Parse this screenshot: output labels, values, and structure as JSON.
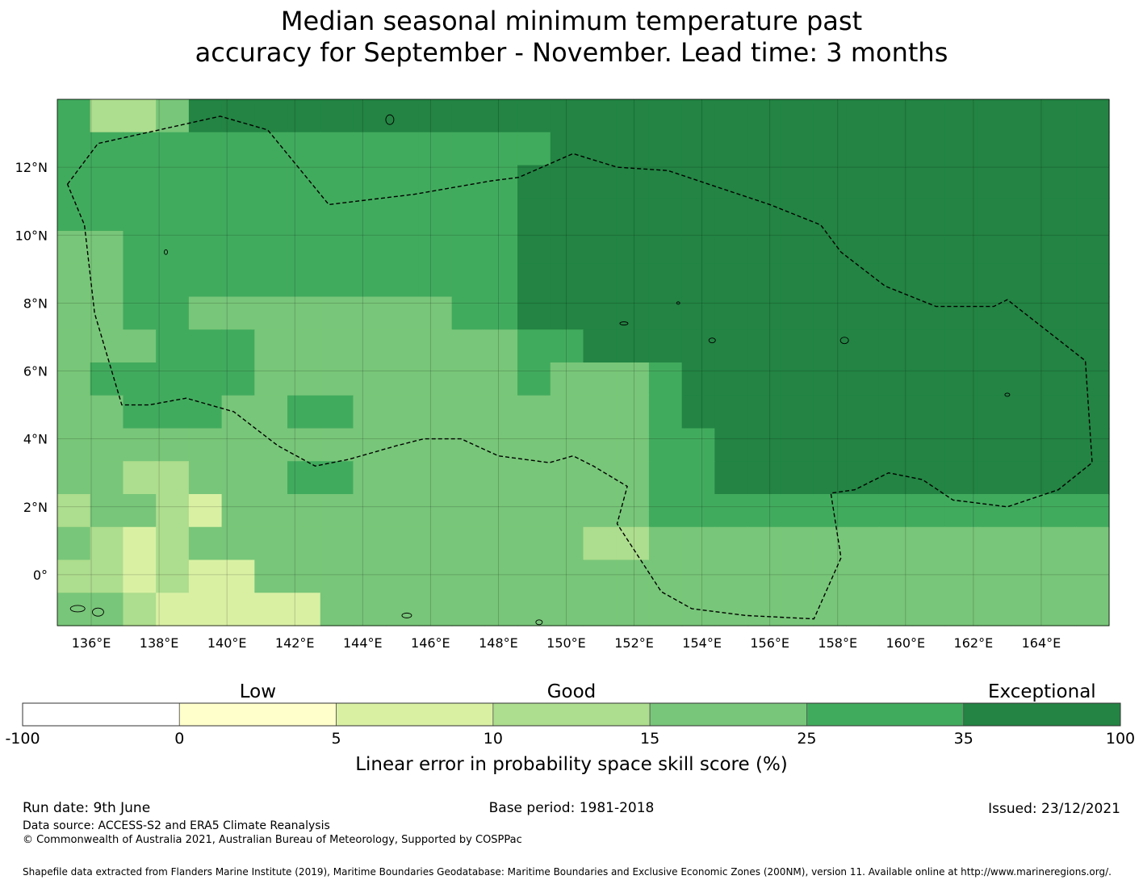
{
  "title_line1": "Median seasonal minimum temperature past",
  "title_line2": "accuracy for September - November. Lead time: 3 months",
  "map": {
    "lat_labels": [
      {
        "value": 12,
        "label": "12°N"
      },
      {
        "value": 10,
        "label": "10°N"
      },
      {
        "value": 8,
        "label": "8°N"
      },
      {
        "value": 6,
        "label": "6°N"
      },
      {
        "value": 4,
        "label": "4°N"
      },
      {
        "value": 2,
        "label": "2°N"
      },
      {
        "value": 0,
        "label": "0°"
      }
    ],
    "lon_labels": [
      {
        "value": 136,
        "label": "136°E"
      },
      {
        "value": 138,
        "label": "138°E"
      },
      {
        "value": 140,
        "label": "140°E"
      },
      {
        "value": 142,
        "label": "142°E"
      },
      {
        "value": 144,
        "label": "144°E"
      },
      {
        "value": 146,
        "label": "146°E"
      },
      {
        "value": 148,
        "label": "148°E"
      },
      {
        "value": 150,
        "label": "150°E"
      },
      {
        "value": 152,
        "label": "152°E"
      },
      {
        "value": 154,
        "label": "154°E"
      },
      {
        "value": 156,
        "label": "156°E"
      },
      {
        "value": 158,
        "label": "158°E"
      },
      {
        "value": 160,
        "label": "160°E"
      },
      {
        "value": 162,
        "label": "162°E"
      },
      {
        "value": 164,
        "label": "164°E"
      }
    ],
    "lon_range": [
      135,
      166
    ],
    "lat_range": [
      -1.5,
      14
    ],
    "boundary_style": "dashed",
    "skill_grid": [
      "64457778877778888888888888888888",
      "66666666666666688888888888888888",
      "66666666666666888888888888888888",
      "66666666666666888888888888888888",
      "55666666666666888888888888888888",
      "55666666666666888888888888888888",
      "55665555555566888888888888888888",
      "55566655555555668888888888888888",
      "56666655555555655568888888888888",
      "55666556655555555568888888888888",
      "55555555555555555566888888888888",
      "55445556655555555566888888888888",
      "45543555555555555566666666666666",
      "54345555555555554455555555555555",
      "44343355555555555555555555555555",
      "55433333555555555555555555555555"
    ],
    "colors": {
      "white": "#ffffff",
      "yellow": "#ffffcc",
      "pale": "#d9f0a3",
      "light": "#addd8e",
      "mid": "#78c679",
      "green": "#41ab5d",
      "dark": "#238443"
    }
  },
  "colorbar": {
    "categories": [
      {
        "label": "Low",
        "value": 2.5
      },
      {
        "label": "Good",
        "value": 12.5
      },
      {
        "label": "Exceptional",
        "value": 67.5
      }
    ],
    "bins": [
      {
        "from": "-100",
        "to": "0",
        "color": "#ffffff"
      },
      {
        "from": "0",
        "to": "5",
        "color": "#ffffcc"
      },
      {
        "from": "5",
        "to": "10",
        "color": "#d9f0a3"
      },
      {
        "from": "10",
        "to": "15",
        "color": "#addd8e"
      },
      {
        "from": "15",
        "to": "25",
        "color": "#78c679"
      },
      {
        "from": "25",
        "to": "35",
        "color": "#41ab5d"
      },
      {
        "from": "35",
        "to": "100",
        "color": "#238443"
      }
    ],
    "tick_labels": [
      "-100",
      "0",
      "5",
      "10",
      "15",
      "25",
      "35",
      "100"
    ],
    "axis_label": "Linear error in probability space skill score (%)"
  },
  "footer": {
    "run_date": "Run date: 9th June",
    "base_period": "Base period: 1981-2018",
    "issued": "Issued: 23/12/2021",
    "data_source": "Data source: ACCESS-S2 and ERA5 Climate Reanalysis",
    "copyright": "© Commonwealth of Australia 2021, Australian Bureau of Meteorology, Supported by COSPPac",
    "shapefile": "Shapefile data extracted from Flanders Marine Institute (2019), Maritime Boundaries Geodatabase: Maritime Boundaries and Exclusive Economic Zones (200NM), version 11. Available online at http://www.marineregions.org/."
  }
}
